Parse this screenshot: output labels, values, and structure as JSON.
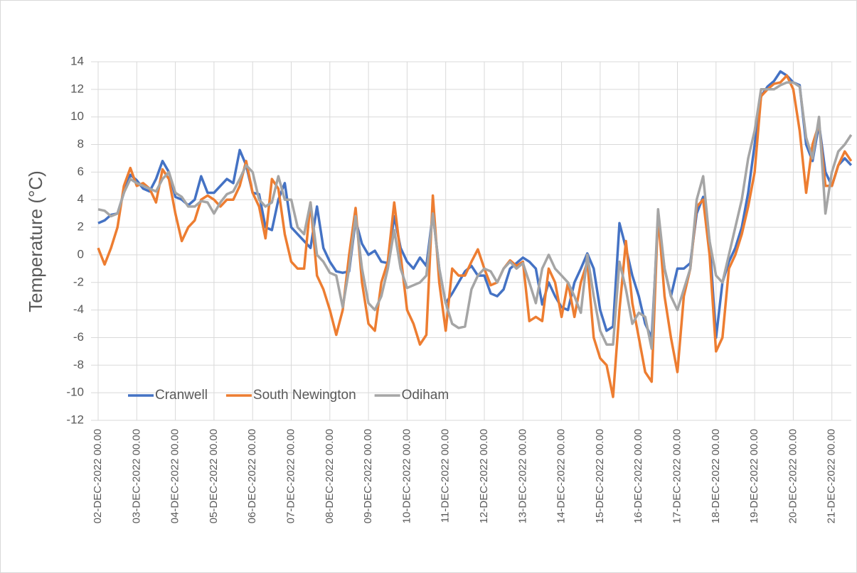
{
  "chart_data": {
    "type": "line",
    "ylabel": "Temperature (°C)",
    "categories": [
      "02-DEC-2022 00.00",
      null,
      null,
      null,
      null,
      null,
      "03-DEC-2022 00.00",
      null,
      null,
      null,
      null,
      null,
      "04-DEC-2022 00.00",
      null,
      null,
      null,
      null,
      null,
      "05-DEC-2022 00.00",
      null,
      null,
      null,
      null,
      null,
      "06-DEC-2022 00.00",
      null,
      null,
      null,
      null,
      null,
      "07-DEC-2022 00.00",
      null,
      null,
      null,
      null,
      null,
      "08-DEC-2022 00.00",
      null,
      null,
      null,
      null,
      null,
      "09-DEC-2022 00.00",
      null,
      null,
      null,
      null,
      null,
      "10-DEC-2022 00.00",
      null,
      null,
      null,
      null,
      null,
      "11-DEC-2022 00.00",
      null,
      null,
      null,
      null,
      null,
      "12-DEC-2022 00.00",
      null,
      null,
      null,
      null,
      null,
      "13-DEC-2022 00.00",
      null,
      null,
      null,
      null,
      null,
      "14-DEC-2022 00.00",
      null,
      null,
      null,
      null,
      null,
      "15-DEC-2022 00.00",
      null,
      null,
      null,
      null,
      null,
      "16-DEC-2022 00.00",
      null,
      null,
      null,
      null,
      null,
      "17-DEC-2022 00.00",
      null,
      null,
      null,
      null,
      null,
      "18-DEC-2022 00.00",
      null,
      null,
      null,
      null,
      null,
      "19-DEC-2022 00.00",
      null,
      null,
      null,
      null,
      null,
      "20-DEC-2022 00.00",
      null,
      null,
      null,
      null,
      null,
      "21-DEC-2022 00.00",
      null,
      null,
      null
    ],
    "series": [
      {
        "name": "Cranwell",
        "color": "#4472c4",
        "values": [
          2.3,
          2.5,
          2.9,
          3,
          4.5,
          5.8,
          5.4,
          4.8,
          4.6,
          5.5,
          6.8,
          6,
          4.2,
          4,
          3.6,
          4,
          5.7,
          4.5,
          4.5,
          5,
          5.5,
          5.2,
          7.6,
          6.5,
          4.5,
          4.4,
          2,
          1.8,
          4,
          5.2,
          2,
          1.5,
          1,
          0.5,
          3.5,
          0.5,
          -0.5,
          -1.2,
          -1.3,
          -1.2,
          2.5,
          0.8,
          0,
          0.3,
          -0.5,
          -0.6,
          2.8,
          0.5,
          -0.5,
          -1,
          -0.2,
          -0.8,
          3,
          -1,
          -3.5,
          -2.8,
          -2,
          -1.2,
          -0.8,
          -1.5,
          -1.5,
          -2.8,
          -3,
          -2.5,
          -1,
          -0.6,
          -0.2,
          -0.5,
          -1,
          -3.6,
          -2,
          -3,
          -3.8,
          -4,
          -2,
          -1,
          0.1,
          -1,
          -4,
          -5.5,
          -5.2,
          2.3,
          0.5,
          -1.5,
          -3,
          -5,
          -6,
          2.5,
          -1,
          -3,
          -1,
          -1,
          -0.6,
          3,
          4.2,
          1,
          -6,
          -2,
          -0.5,
          0.5,
          2,
          4.5,
          8,
          11.5,
          12.2,
          12.6,
          13.3,
          13,
          12.5,
          12.3,
          8,
          6.8,
          9.5,
          6,
          5,
          6.5,
          7,
          6.5
        ]
      },
      {
        "name": "South Newington",
        "color": "#ed7d31",
        "values": [
          0.5,
          -0.7,
          0.5,
          2,
          5,
          6.3,
          5,
          5.2,
          4.8,
          3.8,
          6.2,
          5.5,
          3,
          1,
          2,
          2.5,
          4,
          4.3,
          4,
          3.5,
          4,
          4,
          5,
          6.8,
          4.5,
          3.5,
          1.2,
          5.5,
          4.8,
          1.5,
          -0.5,
          -1,
          -1,
          3.8,
          -1.5,
          -2.5,
          -4,
          -5.8,
          -4,
          0,
          3.4,
          -2,
          -5,
          -5.5,
          -2,
          -0.5,
          3.8,
          0,
          -4,
          -5,
          -6.5,
          -5.8,
          4.3,
          -2,
          -5.5,
          -1,
          -1.5,
          -1.5,
          -0.5,
          0.4,
          -1,
          -2.2,
          -2,
          -1,
          -0.4,
          -0.8,
          -0.5,
          -4.8,
          -4.5,
          -4.8,
          -1,
          -2,
          -4.5,
          -2,
          -4.5,
          -2,
          -0.5,
          -6,
          -7.5,
          -8,
          -10.3,
          -4,
          1,
          -3.5,
          -6,
          -8.5,
          -9.2,
          3,
          -3,
          -6,
          -8.5,
          -3,
          -1,
          3.5,
          4,
          0,
          -7,
          -6,
          -1,
          0,
          1.5,
          3.5,
          6,
          11.5,
          12,
          12.4,
          12.5,
          13,
          12,
          9,
          4.5,
          8,
          9.5,
          5,
          5,
          6.5,
          7.5,
          6.8
        ]
      },
      {
        "name": "Odiham",
        "color": "#a5a5a5",
        "values": [
          3.3,
          3.2,
          2.8,
          3,
          4.5,
          5.5,
          5.2,
          5,
          4.8,
          4.6,
          5.5,
          6,
          4.5,
          4.2,
          3.5,
          3.5,
          3.9,
          3.8,
          3,
          3.8,
          4.4,
          4.6,
          5.5,
          6.5,
          6,
          4,
          3.5,
          3.8,
          5.7,
          4,
          4,
          2,
          1.5,
          3.8,
          0,
          -0.5,
          -1.3,
          -1.5,
          -3.8,
          -1,
          2.8,
          -1,
          -3.5,
          -4,
          -3,
          -1,
          1.8,
          -1,
          -2.4,
          -2.2,
          -2,
          -1.5,
          3,
          -1,
          -3.5,
          -5,
          -5.3,
          -5.2,
          -2.5,
          -1.5,
          -1,
          -1.2,
          -2,
          -1,
          -0.5,
          -1,
          -0.6,
          -2,
          -3.5,
          -1,
          0,
          -1,
          -1.5,
          -2,
          -3,
          -4.2,
          0,
          -3,
          -5.5,
          -6.5,
          -6.5,
          -0.5,
          -2.5,
          -5,
          -4.2,
          -4.5,
          -6.8,
          3.3,
          -1,
          -3,
          -4,
          -2.5,
          -1,
          4,
          5.7,
          1,
          -1.5,
          -2,
          0,
          2,
          4,
          7,
          9,
          12,
          12,
          12,
          12.3,
          12.5,
          12.5,
          12.2,
          8.5,
          7,
          10,
          3,
          6,
          7.5,
          8,
          8.7
        ]
      }
    ],
    "ylim": [
      -12,
      14
    ],
    "yticks": [
      -12,
      -10,
      -8,
      -6,
      -4,
      -2,
      0,
      2,
      4,
      6,
      8,
      10,
      12,
      14
    ],
    "grid": true,
    "legend": "lower left"
  }
}
